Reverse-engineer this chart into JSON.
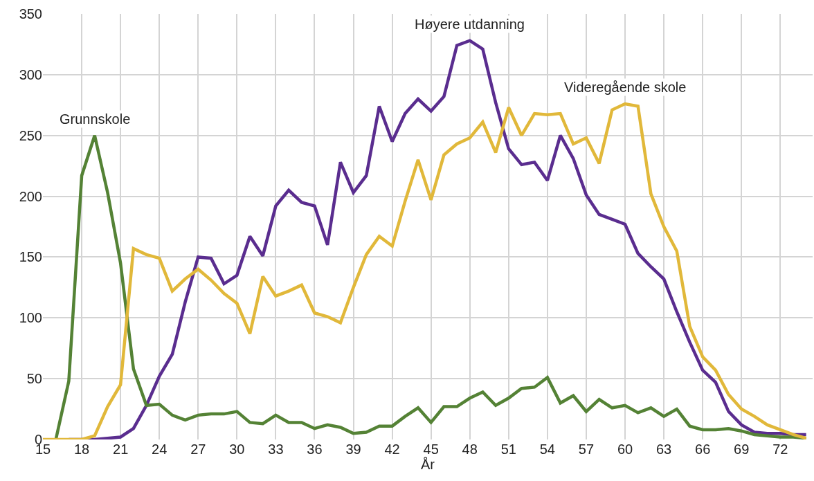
{
  "chart_data": {
    "type": "line",
    "xlabel": "År",
    "x": [
      15,
      16,
      17,
      18,
      19,
      20,
      21,
      22,
      23,
      24,
      25,
      26,
      27,
      28,
      29,
      30,
      31,
      32,
      33,
      34,
      35,
      36,
      37,
      38,
      39,
      40,
      41,
      42,
      43,
      44,
      45,
      46,
      47,
      48,
      49,
      50,
      51,
      52,
      53,
      54,
      55,
      56,
      57,
      58,
      59,
      60,
      61,
      62,
      63,
      64,
      65,
      66,
      67,
      68,
      69,
      70,
      71,
      72,
      73,
      74
    ],
    "series": [
      {
        "name": "Høyere utdanning",
        "color": "#5a2d8f",
        "values": [
          null,
          null,
          0,
          0,
          0,
          1,
          2,
          9,
          28,
          52,
          70,
          113,
          150,
          149,
          128,
          135,
          167,
          151,
          192,
          205,
          195,
          192,
          160,
          228,
          203,
          217,
          274,
          245,
          268,
          280,
          270,
          282,
          324,
          328,
          321,
          277,
          239,
          226,
          228,
          213,
          250,
          231,
          201,
          185,
          181,
          177,
          153,
          142,
          132,
          105,
          80,
          57,
          47,
          23,
          12,
          6,
          5,
          5,
          4,
          4
        ]
      },
      {
        "name": "Grunnskole",
        "color": "#548235",
        "values": [
          null,
          0,
          48,
          217,
          250,
          203,
          145,
          58,
          28,
          29,
          20,
          16,
          20,
          21,
          21,
          23,
          14,
          13,
          20,
          14,
          14,
          9,
          12,
          10,
          5,
          6,
          11,
          11,
          19,
          26,
          14,
          27,
          27,
          34,
          39,
          28,
          34,
          42,
          43,
          51,
          30,
          36,
          23,
          33,
          26,
          28,
          22,
          26,
          19,
          25,
          11,
          8,
          8,
          9,
          7,
          4,
          3,
          2,
          2,
          1
        ]
      },
      {
        "name": "Videregående skole",
        "color": "#e1b83a",
        "values": [
          0,
          0,
          0,
          0,
          3,
          27,
          45,
          157,
          152,
          149,
          122,
          132,
          140,
          131,
          120,
          112,
          87,
          134,
          118,
          122,
          127,
          104,
          101,
          96,
          125,
          152,
          167,
          159,
          196,
          230,
          197,
          234,
          243,
          248,
          261,
          236,
          273,
          250,
          268,
          267,
          268,
          243,
          248,
          227,
          271,
          276,
          274,
          202,
          175,
          155,
          93,
          68,
          57,
          37,
          25,
          19,
          12,
          8,
          4,
          1
        ]
      }
    ],
    "xlim": [
      15,
      74.5
    ],
    "xticks": [
      15,
      18,
      21,
      24,
      27,
      30,
      33,
      36,
      39,
      42,
      45,
      48,
      51,
      54,
      57,
      60,
      63,
      66,
      69,
      72
    ],
    "ylim": [
      0,
      350
    ],
    "yticks": [
      0,
      50,
      100,
      150,
      200,
      250,
      300,
      350
    ],
    "grid": true,
    "legend": false,
    "marker": "none",
    "line_style": "solid"
  }
}
